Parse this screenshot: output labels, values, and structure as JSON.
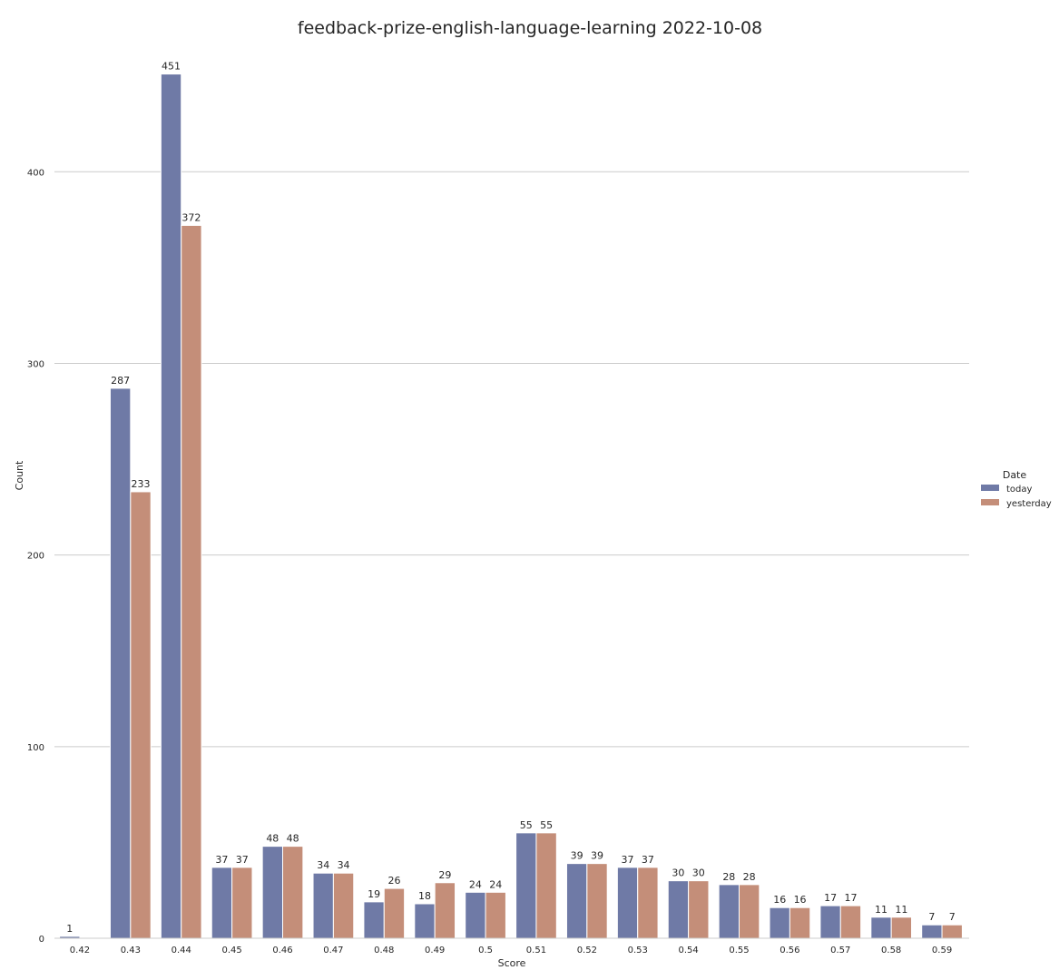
{
  "chart_data": {
    "type": "bar",
    "title": "feedback-prize-english-language-learning 2022-10-08",
    "xlabel": "Score",
    "ylabel": "Count",
    "ylim": [
      0,
      465
    ],
    "yticks": [
      "0",
      "100",
      "200",
      "300",
      "400"
    ],
    "grid": "horizontal",
    "legend": {
      "title": "Date",
      "placement": "center-right"
    },
    "categories": [
      "0.42",
      "0.43",
      "0.44",
      "0.45",
      "0.46",
      "0.47",
      "0.48",
      "0.49",
      "0.5",
      "0.51",
      "0.52",
      "0.53",
      "0.54",
      "0.55",
      "0.56",
      "0.57",
      "0.58",
      "0.59"
    ],
    "series": [
      {
        "name": "today",
        "color": "#6f7aa6",
        "values": [
          1,
          287,
          451,
          37,
          48,
          34,
          19,
          18,
          24,
          55,
          39,
          37,
          30,
          28,
          16,
          17,
          11,
          7
        ]
      },
      {
        "name": "yesterday",
        "color": "#c48e79",
        "values": [
          null,
          233,
          372,
          37,
          48,
          34,
          26,
          29,
          24,
          55,
          39,
          37,
          30,
          28,
          16,
          17,
          11,
          7
        ]
      }
    ]
  }
}
